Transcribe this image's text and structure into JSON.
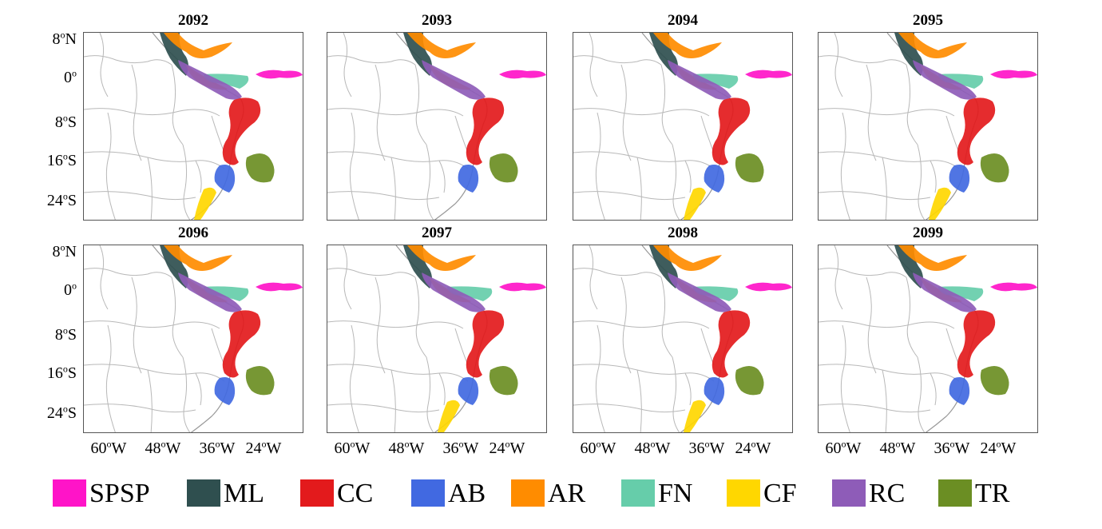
{
  "panels": [
    {
      "year": "2092",
      "present": [
        "SPSP",
        "ML",
        "CC",
        "AB",
        "AR",
        "FN",
        "CF",
        "RC",
        "TR"
      ]
    },
    {
      "year": "2093",
      "present": [
        "SPSP",
        "ML",
        "CC",
        "AB",
        "AR",
        "RC",
        "TR"
      ]
    },
    {
      "year": "2094",
      "present": [
        "SPSP",
        "ML",
        "CC",
        "AB",
        "AR",
        "FN",
        "CF",
        "RC",
        "TR"
      ]
    },
    {
      "year": "2095",
      "present": [
        "SPSP",
        "ML",
        "CC",
        "AB",
        "AR",
        "FN",
        "CF",
        "RC",
        "TR"
      ]
    },
    {
      "year": "2096",
      "present": [
        "SPSP",
        "ML",
        "CC",
        "AB",
        "AR",
        "FN",
        "RC",
        "TR"
      ]
    },
    {
      "year": "2097",
      "present": [
        "SPSP",
        "ML",
        "CC",
        "AB",
        "AR",
        "FN",
        "CF",
        "RC",
        "TR"
      ]
    },
    {
      "year": "2098",
      "present": [
        "SPSP",
        "ML",
        "CC",
        "AB",
        "AR",
        "FN",
        "CF",
        "RC",
        "TR"
      ]
    },
    {
      "year": "2099",
      "present": [
        "SPSP",
        "ML",
        "CC",
        "AB",
        "AR",
        "FN",
        "RC",
        "TR"
      ]
    }
  ],
  "axes": {
    "y_ticks": [
      {
        "num": "8",
        "sup": "o",
        "hem": "N"
      },
      {
        "num": "0",
        "sup": "o",
        "hem": ""
      },
      {
        "num": "8",
        "sup": "o",
        "hem": "S"
      },
      {
        "num": "16",
        "sup": "o",
        "hem": "S"
      },
      {
        "num": "24",
        "sup": "o",
        "hem": "S"
      }
    ],
    "x_ticks": [
      {
        "num": "60",
        "sup": "o",
        "hem": "W"
      },
      {
        "num": "48",
        "sup": "o",
        "hem": "W"
      },
      {
        "num": "36",
        "sup": "o",
        "hem": "W"
      },
      {
        "num": "24",
        "sup": "o",
        "hem": "W"
      }
    ]
  },
  "legend": [
    {
      "label": "SPSP",
      "color": "#ff14c8"
    },
    {
      "label": "ML",
      "color": "#2f4f4f"
    },
    {
      "label": "CC",
      "color": "#e31a1c"
    },
    {
      "label": "AB",
      "color": "#4169e1"
    },
    {
      "label": "AR",
      "color": "#ff8c00"
    },
    {
      "label": "FN",
      "color": "#66cdaa"
    },
    {
      "label": "CF",
      "color": "#ffd700"
    },
    {
      "label": "RC",
      "color": "#8e5cb8"
    },
    {
      "label": "TR",
      "color": "#6b8e23"
    }
  ]
}
